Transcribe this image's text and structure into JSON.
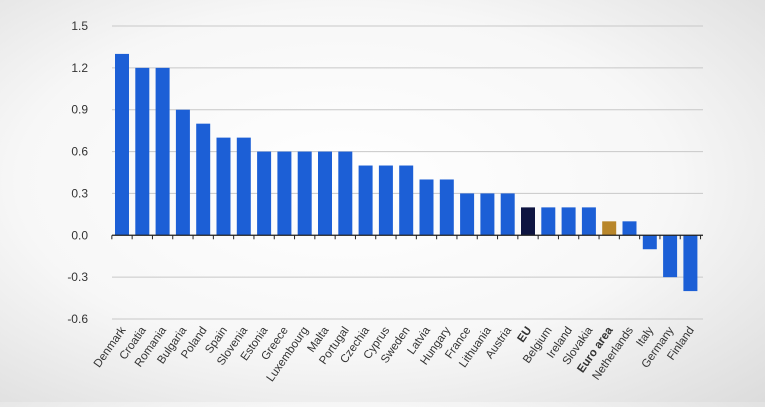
{
  "chart_data": {
    "type": "bar",
    "title": "",
    "xlabel": "",
    "ylabel": "",
    "ylim": [
      -0.6,
      1.5
    ],
    "yticks": [
      1.5,
      1.2,
      0.9,
      0.6,
      0.3,
      0.0,
      -0.3,
      -0.6
    ],
    "grid": true,
    "categories": [
      "Denmark",
      "Croatia",
      "Romania",
      "Bulgaria",
      "Poland",
      "Spain",
      "Slovenia",
      "Estonia",
      "Greece",
      "Luxembourg",
      "Malta",
      "Portugal",
      "Czechia",
      "Cyprus",
      "Sweden",
      "Latvia",
      "Hungary",
      "France",
      "Lithuania",
      "Austria",
      "EU",
      "Belgium",
      "Ireland",
      "Slovakia",
      "Euro area",
      "Netherlands",
      "Italy",
      "Germany",
      "Finland"
    ],
    "values": [
      1.3,
      1.2,
      1.2,
      0.9,
      0.8,
      0.7,
      0.7,
      0.6,
      0.6,
      0.6,
      0.6,
      0.6,
      0.5,
      0.5,
      0.5,
      0.4,
      0.4,
      0.3,
      0.3,
      0.3,
      0.2,
      0.2,
      0.2,
      0.2,
      0.1,
      0.1,
      -0.1,
      -0.3,
      -0.4
    ],
    "highlight": {
      "EU": "#0d1440",
      "Euro area": "#b8862a"
    },
    "bold_labels": [
      "EU",
      "Euro area"
    ],
    "colors": {
      "bar": "#1c5fd6",
      "grid": "#c8c8c8",
      "axis": "#222222",
      "text": "#333333"
    }
  }
}
